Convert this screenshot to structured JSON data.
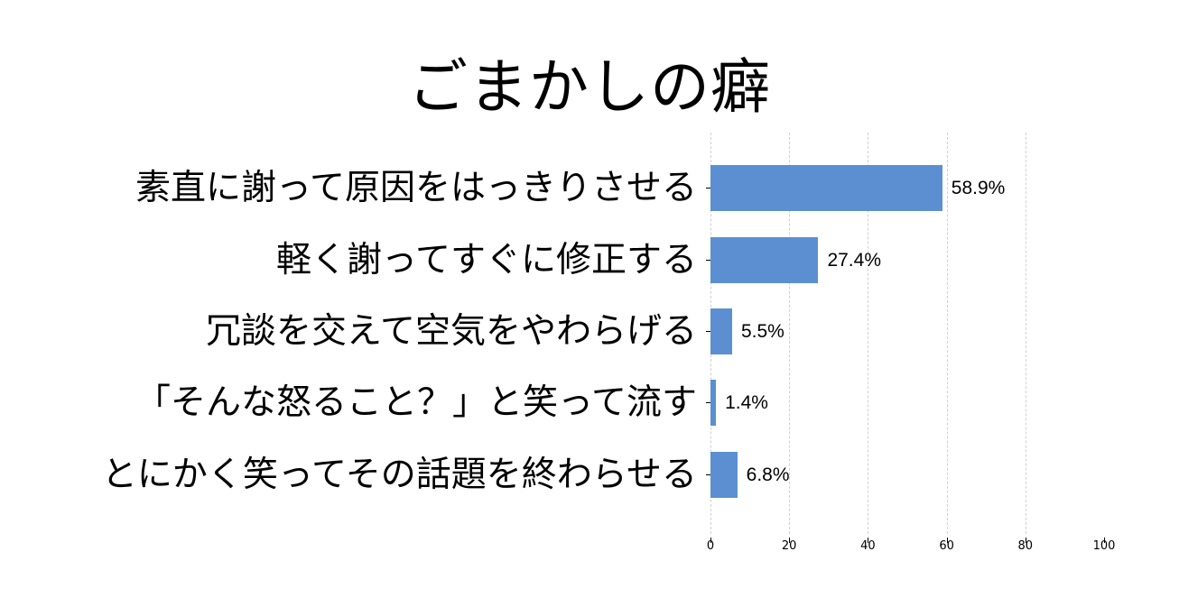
{
  "title": "ごまかしの癖",
  "colors": {
    "bar": "#5b8fd1",
    "grid": "#d0d0d0",
    "text": "#000000",
    "background": "#ffffff"
  },
  "x_axis": {
    "ticks": [
      "0",
      "20",
      "40",
      "60",
      "80",
      "100"
    ]
  },
  "categories": [
    {
      "label": "素直に謝って原因をはっきりさせる",
      "value": 58.9,
      "value_label": "58.9%"
    },
    {
      "label": "軽く謝ってすぐに修正する",
      "value": 27.4,
      "value_label": "27.4%"
    },
    {
      "label": "冗談を交えて空気をやわらげる",
      "value": 5.5,
      "value_label": "5.5%"
    },
    {
      "label": "「そんな怒ること？」と笑って流す",
      "value": 1.4,
      "value_label": "1.4%"
    },
    {
      "label": "とにかく笑ってその話題を終わらせる",
      "value": 6.8,
      "value_label": "6.8%"
    }
  ],
  "chart_data": {
    "type": "bar",
    "orientation": "horizontal",
    "title": "ごまかしの癖",
    "categories": [
      "素直に謝って原因をはっきりさせる",
      "軽く謝ってすぐに修正する",
      "冗談を交えて空気をやわらげる",
      "「そんな怒ること？」と笑って流す",
      "とにかく笑ってその話題を終わらせる"
    ],
    "values": [
      58.9,
      27.4,
      5.5,
      1.4,
      6.8
    ],
    "data_labels": [
      "58.9%",
      "27.4%",
      "5.5%",
      "1.4%",
      "6.8%"
    ],
    "xlabel": "",
    "ylabel": "",
    "xlim": [
      0,
      100
    ],
    "xticks": [
      0,
      20,
      40,
      60,
      80,
      100
    ],
    "grid": {
      "x": true,
      "style": "dashed",
      "positions": [
        0,
        20,
        40,
        60,
        80
      ]
    },
    "legend": null,
    "bar_color": "#5b8fd1"
  }
}
